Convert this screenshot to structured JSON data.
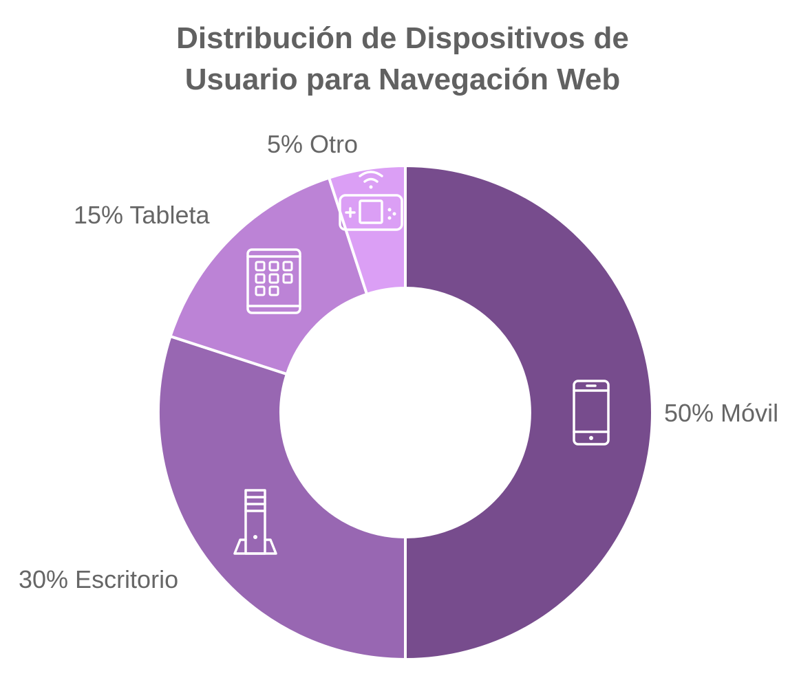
{
  "chart_data": {
    "type": "pie",
    "variant": "donut",
    "title_lines": [
      "Distribución de Dispositivos de",
      "Usuario para Navegación Web"
    ],
    "unit": "%",
    "slices": [
      {
        "category": "Móvil",
        "value": 50,
        "label": "50% Móvil",
        "color": "#774C8D",
        "icon": "smartphone-icon"
      },
      {
        "category": "Escritorio",
        "value": 30,
        "label": "30% Escritorio",
        "color": "#9867B2",
        "icon": "desktop-tower-icon"
      },
      {
        "category": "Tableta",
        "value": 15,
        "label": "15% Tableta",
        "color": "#BC83D6",
        "icon": "tablet-icon"
      },
      {
        "category": "Otro",
        "value": 5,
        "label": "5% Otro",
        "color": "#DB9FF5",
        "icon": "handheld-console-icon"
      }
    ],
    "start": "top, clockwise",
    "legend": "none"
  }
}
